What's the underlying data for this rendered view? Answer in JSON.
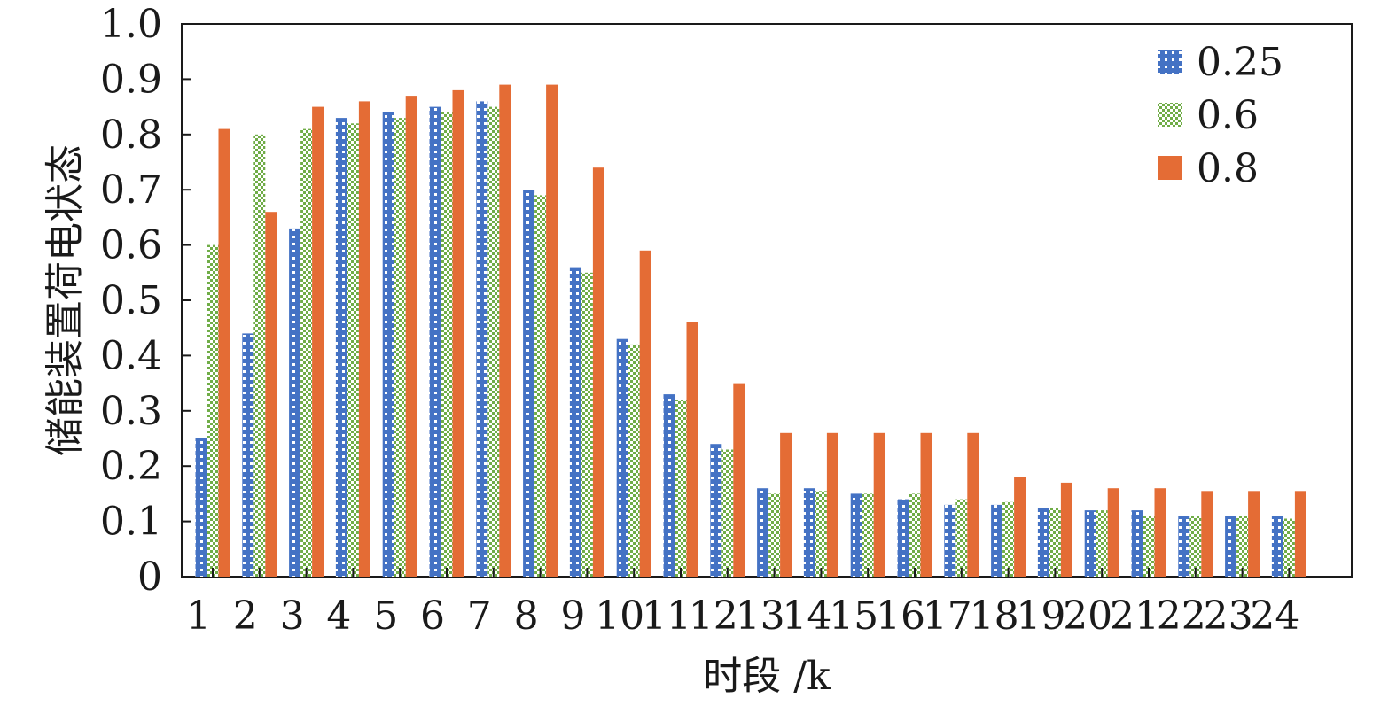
{
  "chart_data": {
    "type": "bar",
    "title": "",
    "xlabel": "时段 /k",
    "ylabel": "储能装置荷电状态",
    "ylim": [
      0,
      1.0
    ],
    "yticks": [
      "0",
      "0.1",
      "0.2",
      "0.3",
      "0.4",
      "0.5",
      "0.6",
      "0.7",
      "0.8",
      "0.9",
      "1.0"
    ],
    "categories": [
      "1",
      "2",
      "3",
      "4",
      "5",
      "6",
      "7",
      "8",
      "9",
      "10",
      "11",
      "12",
      "13",
      "14",
      "15",
      "16",
      "17",
      "18",
      "19",
      "20",
      "21",
      "22",
      "23",
      "24"
    ],
    "legend_position": "top-right",
    "grid": false,
    "series": [
      {
        "name": "0.25",
        "color": "#4472c4",
        "pattern": "dotted",
        "values": [
          0.25,
          0.44,
          0.63,
          0.83,
          0.84,
          0.85,
          0.86,
          0.7,
          0.56,
          0.43,
          0.33,
          0.24,
          0.16,
          0.16,
          0.15,
          0.14,
          0.13,
          0.13,
          0.125,
          0.12,
          0.12,
          0.11,
          0.11,
          0.11
        ]
      },
      {
        "name": "0.6",
        "color": "#70ad47",
        "pattern": "checkered",
        "values": [
          0.6,
          0.8,
          0.81,
          0.82,
          0.83,
          0.84,
          0.85,
          0.69,
          0.55,
          0.42,
          0.32,
          0.23,
          0.15,
          0.155,
          0.15,
          0.15,
          0.14,
          0.135,
          0.125,
          0.12,
          0.11,
          0.11,
          0.11,
          0.105
        ]
      },
      {
        "name": "0.8",
        "color": "#e46c35",
        "pattern": "solid",
        "values": [
          0.81,
          0.66,
          0.85,
          0.86,
          0.87,
          0.88,
          0.89,
          0.89,
          0.74,
          0.59,
          0.46,
          0.35,
          0.26,
          0.26,
          0.26,
          0.26,
          0.26,
          0.18,
          0.17,
          0.16,
          0.16,
          0.155,
          0.155,
          0.155
        ]
      }
    ]
  }
}
